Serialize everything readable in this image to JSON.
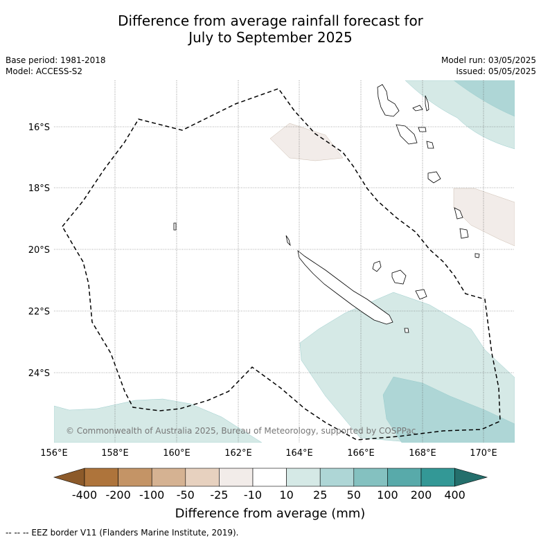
{
  "title_line1": "Difference from average rainfall forecast for",
  "title_line2": "July to September 2025",
  "base_period": "Base period: 1981-2018",
  "model": "Model: ACCESS-S2",
  "model_run": "Model run: 03/05/2025",
  "issued": "Issued: 05/05/2025",
  "copyright": "© Commonwealth of Australia 2025, Bureau of Meteorology, supported by COSPPac",
  "footer_note": "--  --  -- EEZ border V11 (Flanders Marine Institute, 2019).",
  "map": {
    "lon_ticks": [
      "156°E",
      "158°E",
      "160°E",
      "162°E",
      "164°E",
      "166°E",
      "168°E",
      "170°E"
    ],
    "lat_ticks": [
      "16°S",
      "18°S",
      "20°S",
      "22°S",
      "24°S"
    ]
  },
  "colorbar": {
    "title": "Difference from average (mm)",
    "labels": [
      "-400",
      "-200",
      "-100",
      "-50",
      "-25",
      "-10",
      "10",
      "25",
      "50",
      "100",
      "200",
      "400"
    ],
    "colors": {
      "below_min": "#8c5a2a",
      "bins": [
        "#ae743b",
        "#c49466",
        "#d5b292",
        "#e7d1bf",
        "#f2ece9",
        "#ffffff",
        "#d5e9e6",
        "#aed6d6",
        "#84c1c0",
        "#58aaaa",
        "#339896"
      ],
      "above_max": "#246f6c"
    }
  }
}
